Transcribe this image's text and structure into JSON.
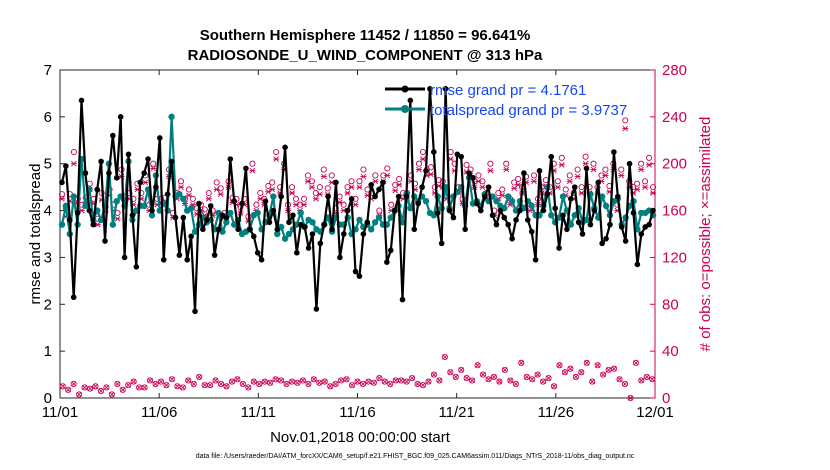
{
  "chart_data": {
    "type": "line",
    "title_line1": "Southern Hemisphere 11452 / 11850 = 96.641%",
    "title_line2": "RADIOSONDE_U_WIND_COMPONENT @ 313 hPa",
    "xlabel": "Nov.01,2018 00:00:00 start",
    "ylabel_left": "rmse and totalspread",
    "ylabel_right": "# of obs: o=possible; ×=assimilated",
    "footnote": "data file: /Users/raeder/DAI/ATM_forcXX/CAM6_setup/f.e21.FHIST_BGC.f09_025.CAM6assim.011/Diags_NTrS_2018-11/obs_diag_output.nc",
    "x_tick_labels": [
      "11/01",
      "11/06",
      "11/11",
      "11/16",
      "11/21",
      "11/26",
      "12/01"
    ],
    "x_tick_days": [
      0,
      5,
      10,
      15,
      20,
      25,
      30
    ],
    "xlim": [
      0,
      30
    ],
    "ylim_left": [
      0,
      7
    ],
    "yticks_left": [
      "0",
      "1",
      "2",
      "3",
      "4",
      "5",
      "6",
      "7"
    ],
    "ylim_right": [
      0,
      280
    ],
    "yticks_right": [
      "0",
      "40",
      "80",
      "120",
      "160",
      "200",
      "240",
      "280"
    ],
    "colors": {
      "rmse": "#000000",
      "spread": "#008080",
      "obs": "#cc0055",
      "legend_text": "#1447f0"
    },
    "series": [
      {
        "name": "rmse grand pr = 4.1761",
        "values": [
          4.6,
          4.95,
          3.8,
          2.15,
          3.95,
          6.35,
          4.8,
          4.0,
          3.7,
          4.45,
          5.05,
          3.35,
          4.8,
          5.6,
          4.7,
          6.0,
          3.0,
          5.2,
          3.9,
          2.8,
          4.6,
          4.8,
          5.1,
          4.0,
          4.5,
          5.55,
          2.95,
          4.35,
          5.05,
          3.85,
          3.05,
          3.85,
          2.95,
          3.45,
          1.85,
          4.15,
          3.6,
          3.8,
          4.1,
          3.05,
          3.6,
          3.9,
          3.85,
          5.1,
          4.2,
          3.6,
          4.15,
          4.9,
          3.6,
          3.45,
          3.1,
          2.95,
          4.2,
          3.75,
          4.0,
          3.6,
          4.3,
          5.35,
          3.75,
          3.9,
          3.1,
          3.7,
          3.65,
          3.2,
          3.5,
          1.9,
          3.3,
          3.7,
          4.3,
          3.6,
          4.6,
          3.0,
          3.5,
          4.0,
          4.25,
          2.7,
          2.6,
          3.5,
          3.75,
          4.55,
          4.3,
          4.45,
          4.6,
          2.9,
          3.15,
          4.0,
          4.3,
          2.1,
          4.3,
          6.35,
          3.6,
          4.15,
          4.5,
          4.85,
          6.6,
          5.25,
          3.95,
          3.3,
          6.6,
          4.0,
          3.85,
          5.2,
          5.15,
          3.6,
          4.8,
          4.7,
          4.15,
          4.0,
          4.3,
          4.5,
          3.9,
          3.7,
          4.0,
          3.85,
          3.7,
          3.4,
          3.8,
          4.0,
          4.8,
          3.8,
          3.55,
          2.95,
          4.85,
          4.0,
          4.35,
          5.15,
          4.05,
          3.2,
          3.9,
          3.6,
          4.25,
          4.5,
          3.75,
          3.5,
          4.9,
          3.7,
          4.0,
          4.6,
          3.3,
          3.4,
          3.7,
          5.25,
          4.3,
          3.65,
          3.35,
          5.0,
          3.95,
          2.85,
          3.5,
          3.65,
          3.7,
          4.0
        ]
      },
      {
        "name": "totalspread grand pr = 3.9737",
        "values": [
          3.7,
          4.1,
          3.5,
          4.3,
          3.7,
          5.1,
          4.1,
          4.45,
          3.8,
          4.0,
          3.8,
          4.1,
          5.0,
          3.7,
          4.2,
          4.3,
          4.1,
          5.05,
          3.8,
          4.0,
          4.1,
          4.1,
          4.45,
          3.9,
          4.75,
          4.0,
          4.15,
          4.0,
          6.0,
          4.3,
          4.35,
          4.25,
          4.0,
          4.05,
          3.55,
          3.7,
          3.85,
          3.75,
          3.8,
          3.6,
          3.95,
          3.55,
          3.75,
          3.95,
          3.7,
          3.8,
          3.5,
          3.55,
          3.6,
          3.9,
          3.95,
          3.6,
          3.75,
          3.9,
          4.3,
          3.5,
          3.65,
          3.4,
          3.5,
          3.6,
          3.7,
          3.95,
          3.65,
          3.8,
          3.75,
          3.6,
          3.55,
          3.7,
          3.85,
          3.55,
          3.85,
          3.7,
          3.7,
          3.85,
          3.5,
          3.6,
          3.8,
          3.65,
          3.7,
          3.6,
          3.75,
          3.85,
          3.7,
          3.7,
          3.85,
          4.0,
          4.1,
          3.75,
          4.35,
          4.05,
          4.3,
          4.2,
          4.3,
          4.2,
          3.95,
          3.9,
          4.3,
          4.05,
          4.5,
          4.05,
          4.3,
          4.4,
          4.5,
          4.1,
          4.7,
          4.15,
          4.2,
          4.1,
          4.35,
          4.2,
          4.3,
          4.2,
          4.1,
          4.05,
          4.3,
          4.2,
          4.0,
          4.2,
          4.05,
          4.2,
          4.1,
          3.9,
          3.9,
          4.1,
          4.5,
          3.9,
          3.75,
          3.85,
          4.3,
          4.0,
          3.7,
          3.9,
          4.05,
          3.75,
          3.8,
          4.35,
          4.05,
          3.85,
          4.3,
          4.1,
          3.9,
          4.2,
          4.25,
          3.7,
          3.85,
          4.1,
          4.2,
          3.6,
          3.95,
          3.95,
          4.0,
          3.9
        ]
      }
    ],
    "obs_possible": [
      174,
      162,
      174,
      210,
      170,
      165,
      171,
      183,
      170,
      153,
      175,
      163,
      178,
      165,
      158,
      195,
      172,
      175,
      170,
      183,
      175,
      190,
      165,
      200,
      170,
      170,
      171,
      195,
      158,
      175,
      185,
      170,
      178,
      170,
      162,
      165,
      161,
      175,
      160,
      184,
      179,
      158,
      185,
      171,
      170,
      163,
      170,
      155,
      200,
      165,
      175,
      170,
      181,
      184,
      210,
      180,
      200,
      165,
      180,
      170,
      165,
      170,
      190,
      185,
      175,
      180,
      195,
      179,
      190,
      162,
      172,
      165,
      180,
      185,
      170,
      185,
      195,
      178,
      175,
      190,
      160,
      190,
      196,
      165,
      182,
      187,
      175,
      175,
      190,
      183,
      200,
      210,
      195,
      197,
      180,
      186,
      185,
      175,
      210,
      200,
      180,
      170,
      199,
      195,
      185,
      190,
      185,
      175,
      200,
      160,
      175,
      178,
      200,
      170,
      184,
      187,
      180,
      189,
      165,
      190,
      170,
      180,
      186,
      180,
      200,
      185,
      205,
      178,
      190,
      175,
      195,
      180,
      206,
      180,
      200,
      180,
      190,
      195,
      181,
      200,
      165,
      195,
      237,
      185,
      180,
      183,
      200,
      185,
      205,
      180
    ],
    "obs_assimilated": [
      170,
      155,
      168,
      200,
      167,
      160,
      166,
      178,
      166,
      148,
      169,
      159,
      173,
      160,
      153,
      189,
      168,
      170,
      165,
      178,
      170,
      184,
      160,
      196,
      165,
      166,
      166,
      189,
      154,
      170,
      180,
      166,
      173,
      165,
      157,
      160,
      156,
      170,
      156,
      178,
      174,
      154,
      180,
      167,
      165,
      158,
      165,
      151,
      194,
      160,
      170,
      165,
      176,
      178,
      204,
      175,
      195,
      160,
      175,
      165,
      160,
      165,
      185,
      180,
      170,
      174,
      189,
      174,
      184,
      158,
      167,
      160,
      175,
      180,
      165,
      180,
      189,
      173,
      170,
      185,
      156,
      185,
      190,
      160,
      177,
      182,
      170,
      170,
      185,
      178,
      195,
      204,
      190,
      191,
      175,
      181,
      180,
      170,
      204,
      194,
      175,
      166,
      193,
      190,
      180,
      185,
      180,
      170,
      194,
      156,
      170,
      173,
      195,
      165,
      179,
      182,
      175,
      184,
      160,
      185,
      165,
      175,
      181,
      175,
      194,
      180,
      199,
      173,
      185,
      170,
      189,
      175,
      200,
      175,
      195,
      175,
      185,
      190,
      176,
      195,
      160,
      190,
      230,
      180,
      175,
      178,
      195,
      180,
      199,
      175
    ],
    "obs_low_possible": [
      10,
      7,
      12,
      3,
      9,
      8,
      10,
      6,
      9,
      3,
      12,
      7,
      11,
      14,
      9,
      9,
      15,
      12,
      14,
      11,
      16,
      10,
      9,
      15,
      12,
      18,
      11,
      11,
      15,
      12,
      10,
      14,
      16,
      12,
      9,
      14,
      12,
      14,
      13,
      16,
      15,
      12,
      14,
      13,
      15,
      12,
      16,
      13,
      14,
      10,
      12,
      15,
      16,
      11,
      14,
      12,
      14,
      13,
      17,
      14,
      12,
      15,
      15,
      14,
      17,
      12,
      11,
      14,
      20,
      15,
      35,
      22,
      18,
      24,
      17,
      15,
      28,
      20,
      16,
      18,
      14,
      24,
      15,
      12,
      30,
      18,
      16,
      20,
      14,
      17,
      10,
      28,
      22,
      25,
      18,
      22,
      30,
      14,
      28,
      20,
      24,
      25,
      16,
      12,
      0,
      30,
      15,
      18,
      16
    ]
  }
}
